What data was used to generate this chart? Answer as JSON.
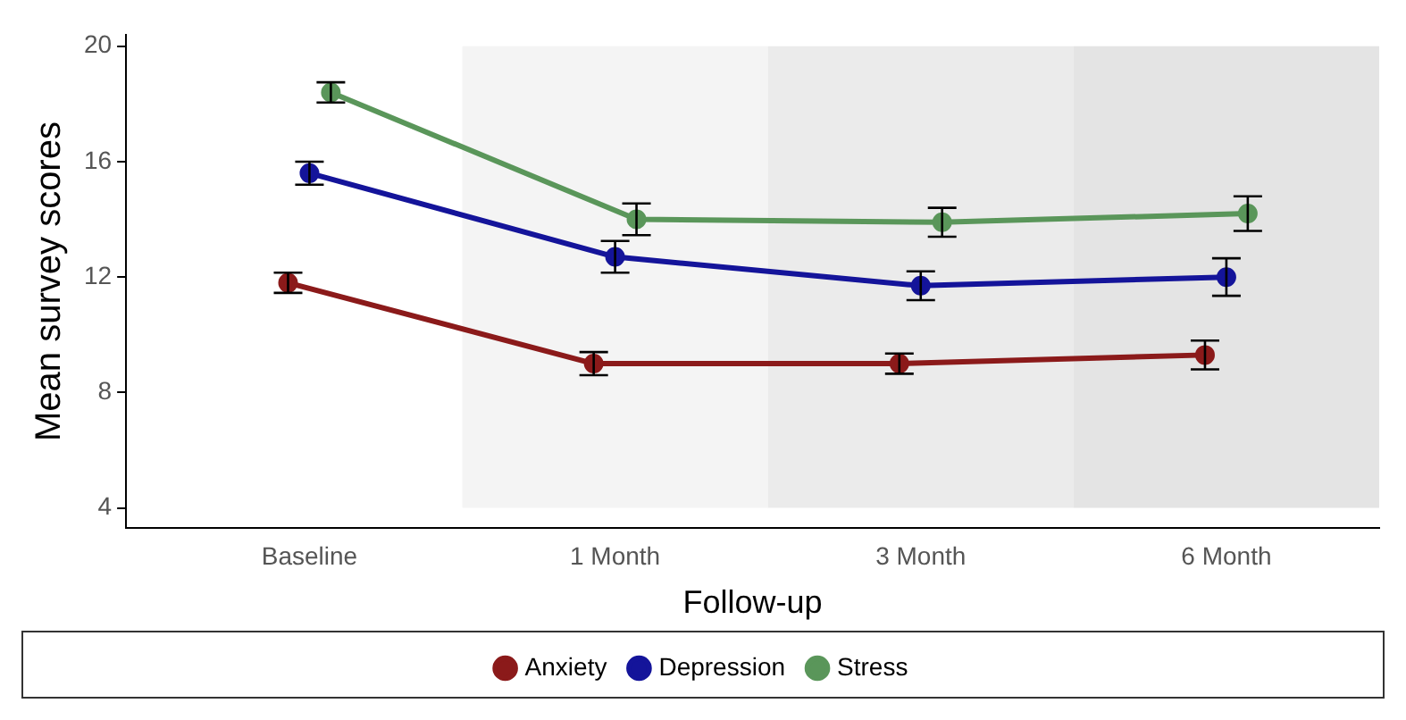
{
  "chart_data": {
    "type": "line",
    "xlabel": "Follow-up",
    "ylabel": "Mean survey scores",
    "categories": [
      "Baseline",
      "1 Month",
      "3 Month",
      "6 Month"
    ],
    "series": [
      {
        "name": "Anxiety",
        "color": "#8b1a1a",
        "values": [
          11.8,
          9.0,
          9.0,
          9.3
        ],
        "errors": [
          0.35,
          0.4,
          0.35,
          0.5
        ]
      },
      {
        "name": "Depression",
        "color": "#14149a",
        "values": [
          15.6,
          12.7,
          11.7,
          12.0
        ],
        "errors": [
          0.4,
          0.55,
          0.5,
          0.65
        ]
      },
      {
        "name": "Stress",
        "color": "#5a965a",
        "values": [
          18.4,
          14.0,
          13.9,
          14.2
        ],
        "errors": [
          0.35,
          0.55,
          0.5,
          0.6
        ]
      }
    ],
    "ylim": [
      3.3,
      20.4
    ],
    "yticks": [
      4,
      8,
      12,
      16,
      20
    ],
    "bands": [
      {
        "axis": "x",
        "from": "1 Month",
        "to": "1 Month",
        "color": "#f4f4f4"
      },
      {
        "axis": "x",
        "from": "3 Month",
        "to": "3 Month",
        "color": "#ebebeb"
      },
      {
        "axis": "x",
        "from": "6 Month",
        "to": "6 Month",
        "color": "#e4e4e4"
      }
    ],
    "grid": false,
    "legend": "bottom",
    "marker": "circle",
    "line_style": "solid"
  }
}
